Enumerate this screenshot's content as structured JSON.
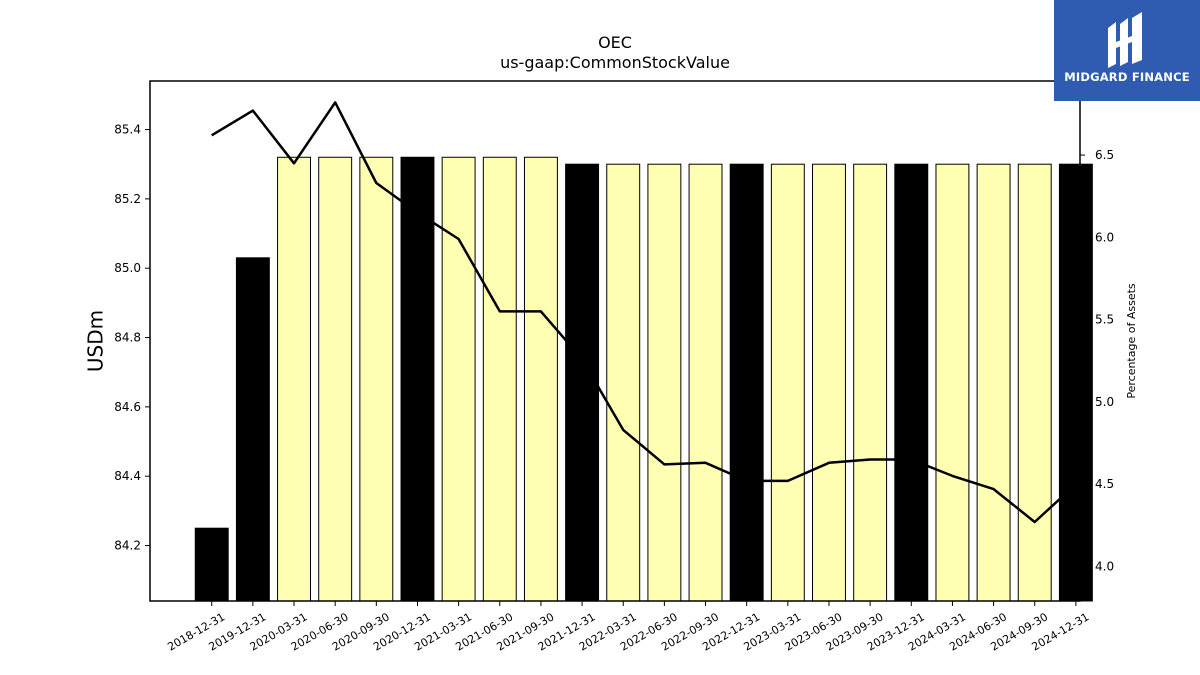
{
  "chart_data": {
    "type": "bar",
    "title": "OEC",
    "subtitle": "us-gaap:CommonStockValue",
    "ylabel": "USDm",
    "y2label": "Percentage of Assets",
    "ylim": [
      84.04,
      85.54
    ],
    "y2lim": [
      3.79,
      6.95
    ],
    "yticks": [
      84.2,
      84.4,
      84.6,
      84.8,
      85.0,
      85.2,
      85.4
    ],
    "y2ticks": [
      4.0,
      4.5,
      5.0,
      5.5,
      6.0,
      6.5
    ],
    "categories": [
      "2018-12-31",
      "2019-12-31",
      "2020-03-31",
      "2020-06-30",
      "2020-09-30",
      "2020-12-31",
      "2021-03-31",
      "2021-06-30",
      "2021-09-30",
      "2021-12-31",
      "2022-03-31",
      "2022-06-30",
      "2022-09-30",
      "2022-12-31",
      "2023-03-31",
      "2023-06-30",
      "2023-09-30",
      "2023-12-31",
      "2024-03-31",
      "2024-06-30",
      "2024-09-30",
      "2024-12-31"
    ],
    "values": [
      84.25,
      85.03,
      85.32,
      85.32,
      85.32,
      85.32,
      85.32,
      85.32,
      85.32,
      85.3,
      85.3,
      85.3,
      85.3,
      85.3,
      85.3,
      85.3,
      85.3,
      85.3,
      85.3,
      85.3,
      85.3,
      85.3
    ],
    "bar_colors": [
      "#000000",
      "#000000",
      "#ffffb3",
      "#ffffb3",
      "#ffffb3",
      "#000000",
      "#ffffb3",
      "#ffffb3",
      "#ffffb3",
      "#000000",
      "#ffffb3",
      "#ffffb3",
      "#ffffb3",
      "#000000",
      "#ffffb3",
      "#ffffb3",
      "#ffffb3",
      "#000000",
      "#ffffb3",
      "#ffffb3",
      "#ffffb3",
      "#000000"
    ],
    "series": [
      {
        "axis": "right",
        "values": [
          6.62,
          6.77,
          6.45,
          6.82,
          6.33,
          6.15,
          5.99,
          5.55,
          5.55,
          5.26,
          4.83,
          4.62,
          4.63,
          4.52,
          4.52,
          4.63,
          4.65,
          4.65,
          4.55,
          4.47,
          4.27,
          4.5
        ]
      }
    ]
  },
  "logo": {
    "text": "MIDGARD FINANCE"
  }
}
